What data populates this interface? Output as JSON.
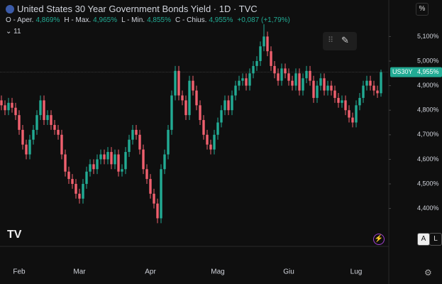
{
  "header": {
    "title": "United States 30 Year Government Bonds Yield · 1D · TVC",
    "ohlc": [
      {
        "label": "O - Aper.",
        "value": "4,869%"
      },
      {
        "label": "H - Max.",
        "value": "4,965%"
      },
      {
        "label": "L - Min.",
        "value": "4,855%"
      },
      {
        "label": "C - Chius.",
        "value": "4,955%"
      }
    ],
    "change": "+0,087 (+1,79%)",
    "indicators": "11"
  },
  "toolbar": {
    "scale": "%",
    "auto": "A",
    "log": "L"
  },
  "chart_data": {
    "type": "candlestick",
    "up_color": "#22ab94",
    "down_color": "#f0606e",
    "categories": [
      null,
      null,
      null,
      null,
      null,
      "Feb",
      null,
      null,
      null,
      null,
      null,
      null,
      null,
      null,
      null,
      null,
      null,
      null,
      null,
      null,
      null,
      null,
      "Mar",
      null,
      null,
      null,
      null,
      null,
      null,
      null,
      null,
      null,
      null,
      null,
      null,
      null,
      null,
      null,
      null,
      null,
      null,
      null,
      "Apr",
      null,
      null,
      null,
      null,
      null,
      null,
      null,
      null,
      null,
      null,
      null,
      null,
      null,
      null,
      null,
      null,
      null,
      null,
      "Mag",
      null,
      null,
      null,
      null,
      null,
      null,
      null,
      null,
      null,
      null,
      null,
      null,
      null,
      null,
      null,
      null,
      null,
      null,
      null,
      "Giu",
      null,
      null,
      null,
      null,
      null,
      null,
      null,
      null,
      null,
      null,
      null,
      null,
      null,
      null,
      null,
      null,
      null,
      null,
      "Lug",
      null,
      null,
      null,
      null,
      null,
      null,
      null
    ],
    "open": [
      4.84,
      4.82,
      4.8,
      4.83,
      4.81,
      4.78,
      4.72,
      4.66,
      4.62,
      4.68,
      4.72,
      4.78,
      4.84,
      4.76,
      4.78,
      4.74,
      4.72,
      4.7,
      4.62,
      4.55,
      4.52,
      4.5,
      4.46,
      4.44,
      4.5,
      4.55,
      4.58,
      4.56,
      4.6,
      4.62,
      4.6,
      4.63,
      4.58,
      4.62,
      4.55,
      4.56,
      4.63,
      4.68,
      4.72,
      4.7,
      4.64,
      4.56,
      4.52,
      4.46,
      4.42,
      4.36,
      4.56,
      4.62,
      4.72,
      4.86,
      4.96,
      4.86,
      4.84,
      4.78,
      4.92,
      4.88,
      4.82,
      4.76,
      4.7,
      4.66,
      4.64,
      4.7,
      4.75,
      4.8,
      4.84,
      4.8,
      4.86,
      4.9,
      4.92,
      4.93,
      4.9,
      4.95,
      4.98,
      5.0,
      5.06,
      5.1,
      5.04,
      4.98,
      4.95,
      4.92,
      4.97,
      4.95,
      4.92,
      4.9,
      4.95,
      4.88,
      4.93,
      4.96,
      4.92,
      4.85,
      4.9,
      4.93,
      4.88,
      4.9,
      4.88,
      4.85,
      4.83,
      4.84,
      4.8,
      4.77,
      4.75,
      4.82,
      4.85,
      4.9,
      4.92,
      4.9,
      4.88,
      4.869
    ],
    "high": [
      4.86,
      4.84,
      4.85,
      4.85,
      4.83,
      4.8,
      4.74,
      4.68,
      4.7,
      4.74,
      4.8,
      4.86,
      4.86,
      4.8,
      4.8,
      4.76,
      4.74,
      4.72,
      4.64,
      4.57,
      4.54,
      4.52,
      4.48,
      4.52,
      4.57,
      4.6,
      4.6,
      4.62,
      4.64,
      4.64,
      4.65,
      4.65,
      4.64,
      4.64,
      4.58,
      4.65,
      4.7,
      4.74,
      4.74,
      4.72,
      4.66,
      4.58,
      4.54,
      4.48,
      4.44,
      4.58,
      4.64,
      4.74,
      4.88,
      4.98,
      4.98,
      4.88,
      4.86,
      4.94,
      4.94,
      4.9,
      4.84,
      4.78,
      4.72,
      4.68,
      4.72,
      4.77,
      4.82,
      4.86,
      4.86,
      4.88,
      4.92,
      4.94,
      4.95,
      4.95,
      4.97,
      5.0,
      5.02,
      5.08,
      5.15,
      5.12,
      5.06,
      5.0,
      4.97,
      4.99,
      4.99,
      4.97,
      4.94,
      4.97,
      4.97,
      4.95,
      4.98,
      4.98,
      4.94,
      4.92,
      4.95,
      4.95,
      4.92,
      4.92,
      4.9,
      4.87,
      4.86,
      4.86,
      4.82,
      4.79,
      4.84,
      4.87,
      4.92,
      4.94,
      4.94,
      4.92,
      4.9,
      4.965
    ],
    "low": [
      4.8,
      4.78,
      4.78,
      4.79,
      4.76,
      4.7,
      4.64,
      4.6,
      4.6,
      4.66,
      4.7,
      4.76,
      4.74,
      4.74,
      4.72,
      4.7,
      4.68,
      4.6,
      4.53,
      4.5,
      4.48,
      4.44,
      4.42,
      4.42,
      4.48,
      4.53,
      4.54,
      4.54,
      4.58,
      4.58,
      4.58,
      4.56,
      4.56,
      4.53,
      4.53,
      4.54,
      4.61,
      4.66,
      4.68,
      4.62,
      4.54,
      4.5,
      4.44,
      4.4,
      4.34,
      4.34,
      4.54,
      4.6,
      4.7,
      4.84,
      4.84,
      4.82,
      4.76,
      4.76,
      4.86,
      4.8,
      4.74,
      4.68,
      4.64,
      4.62,
      4.62,
      4.68,
      4.73,
      4.78,
      4.78,
      4.78,
      4.84,
      4.88,
      4.9,
      4.88,
      4.88,
      4.93,
      4.96,
      4.98,
      5.04,
      5.02,
      4.96,
      4.93,
      4.9,
      4.9,
      4.93,
      4.9,
      4.88,
      4.88,
      4.86,
      4.86,
      4.91,
      4.9,
      4.83,
      4.83,
      4.88,
      4.86,
      4.86,
      4.86,
      4.83,
      4.81,
      4.81,
      4.78,
      4.75,
      4.73,
      4.73,
      4.8,
      4.83,
      4.88,
      4.88,
      4.86,
      4.85,
      4.855
    ],
    "close": [
      4.82,
      4.8,
      4.83,
      4.81,
      4.78,
      4.72,
      4.66,
      4.62,
      4.68,
      4.72,
      4.78,
      4.84,
      4.76,
      4.78,
      4.74,
      4.72,
      4.7,
      4.62,
      4.55,
      4.52,
      4.5,
      4.46,
      4.44,
      4.5,
      4.55,
      4.58,
      4.56,
      4.6,
      4.62,
      4.6,
      4.63,
      4.58,
      4.62,
      4.55,
      4.56,
      4.63,
      4.68,
      4.72,
      4.7,
      4.64,
      4.56,
      4.52,
      4.46,
      4.42,
      4.36,
      4.56,
      4.62,
      4.72,
      4.86,
      4.96,
      4.86,
      4.84,
      4.78,
      4.92,
      4.88,
      4.82,
      4.76,
      4.7,
      4.66,
      4.64,
      4.7,
      4.75,
      4.8,
      4.84,
      4.8,
      4.86,
      4.9,
      4.92,
      4.93,
      4.9,
      4.95,
      4.98,
      5.0,
      5.06,
      5.1,
      5.04,
      4.98,
      4.95,
      4.92,
      4.97,
      4.95,
      4.92,
      4.9,
      4.95,
      4.88,
      4.93,
      4.96,
      4.92,
      4.85,
      4.9,
      4.93,
      4.88,
      4.9,
      4.88,
      4.85,
      4.83,
      4.84,
      4.8,
      4.77,
      4.75,
      4.82,
      4.85,
      4.9,
      4.92,
      4.9,
      4.88,
      4.869,
      4.955
    ],
    "ylim": [
      4.2457,
      5.2486
    ],
    "yticks": [
      {
        "value": 4.4,
        "label": "4,400%"
      },
      {
        "value": 4.5,
        "label": "4,500%"
      },
      {
        "value": 4.6,
        "label": "4,600%"
      },
      {
        "value": 4.7,
        "label": "4,700%"
      },
      {
        "value": 4.8,
        "label": "4,800%"
      },
      {
        "value": 4.9,
        "label": "4,900%"
      },
      {
        "value": 5.0,
        "label": "5,000%"
      },
      {
        "value": 5.1,
        "label": "5,100%"
      }
    ],
    "price_tag": {
      "symbol": "US30Y",
      "value": 4.955,
      "label": "4,955%"
    }
  }
}
